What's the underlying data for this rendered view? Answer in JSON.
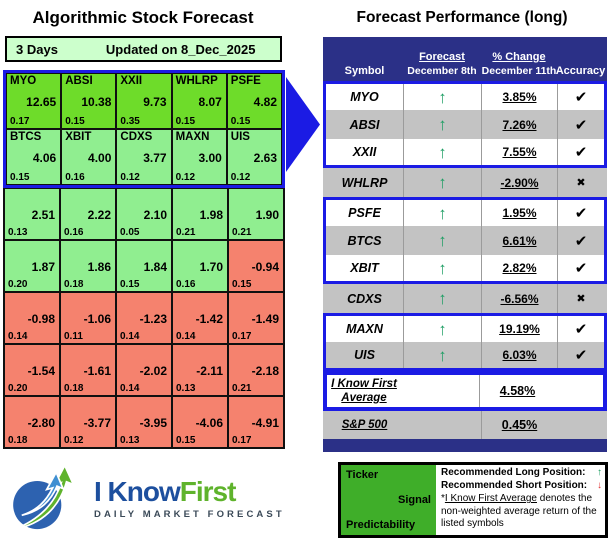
{
  "left_panel": {
    "title": "Algorithmic Stock Forecast",
    "period": "3 Days",
    "updated": "Updated on 8_Dec_2025",
    "grid": {
      "rows": [
        {
          "highlight": true,
          "cells": [
            {
              "ticker": "MYO",
              "signal": "12.65",
              "predictability": "0.17",
              "tone": "strong"
            },
            {
              "ticker": "ABSI",
              "signal": "10.38",
              "predictability": "0.15",
              "tone": "strong"
            },
            {
              "ticker": "XXII",
              "signal": "9.73",
              "predictability": "0.35",
              "tone": "strong"
            },
            {
              "ticker": "WHLRP",
              "signal": "8.07",
              "predictability": "0.15",
              "tone": "strong"
            },
            {
              "ticker": "PSFE",
              "signal": "4.82",
              "predictability": "0.15",
              "tone": "strong"
            }
          ]
        },
        {
          "highlight": true,
          "cells": [
            {
              "ticker": "BTCS",
              "signal": "4.06",
              "predictability": "0.15",
              "tone": "positive"
            },
            {
              "ticker": "XBIT",
              "signal": "4.00",
              "predictability": "0.16",
              "tone": "positive"
            },
            {
              "ticker": "CDXS",
              "signal": "3.77",
              "predictability": "0.12",
              "tone": "positive"
            },
            {
              "ticker": "MAXN",
              "signal": "3.00",
              "predictability": "0.12",
              "tone": "positive"
            },
            {
              "ticker": "UIS",
              "signal": "2.63",
              "predictability": "0.12",
              "tone": "positive"
            }
          ]
        },
        {
          "highlight": false,
          "cells": [
            {
              "ticker": "",
              "signal": "2.51",
              "predictability": "0.13",
              "tone": "positive"
            },
            {
              "ticker": "",
              "signal": "2.22",
              "predictability": "0.16",
              "tone": "positive"
            },
            {
              "ticker": "",
              "signal": "2.10",
              "predictability": "0.05",
              "tone": "positive"
            },
            {
              "ticker": "",
              "signal": "1.98",
              "predictability": "0.21",
              "tone": "positive"
            },
            {
              "ticker": "",
              "signal": "1.90",
              "predictability": "0.21",
              "tone": "positive"
            }
          ]
        },
        {
          "highlight": false,
          "cells": [
            {
              "ticker": "",
              "signal": "1.87",
              "predictability": "0.20",
              "tone": "positive"
            },
            {
              "ticker": "",
              "signal": "1.86",
              "predictability": "0.18",
              "tone": "positive"
            },
            {
              "ticker": "",
              "signal": "1.84",
              "predictability": "0.15",
              "tone": "positive"
            },
            {
              "ticker": "",
              "signal": "1.70",
              "predictability": "0.16",
              "tone": "positive"
            },
            {
              "ticker": "",
              "signal": "-0.94",
              "predictability": "0.15",
              "tone": "negative"
            }
          ]
        },
        {
          "highlight": false,
          "cells": [
            {
              "ticker": "",
              "signal": "-0.98",
              "predictability": "0.14",
              "tone": "negative"
            },
            {
              "ticker": "",
              "signal": "-1.06",
              "predictability": "0.11",
              "tone": "negative"
            },
            {
              "ticker": "",
              "signal": "-1.23",
              "predictability": "0.14",
              "tone": "negative"
            },
            {
              "ticker": "",
              "signal": "-1.42",
              "predictability": "0.14",
              "tone": "negative"
            },
            {
              "ticker": "",
              "signal": "-1.49",
              "predictability": "0.17",
              "tone": "negative"
            }
          ]
        },
        {
          "highlight": false,
          "cells": [
            {
              "ticker": "",
              "signal": "-1.54",
              "predictability": "0.20",
              "tone": "negative"
            },
            {
              "ticker": "",
              "signal": "-1.61",
              "predictability": "0.18",
              "tone": "negative"
            },
            {
              "ticker": "",
              "signal": "-2.02",
              "predictability": "0.14",
              "tone": "negative"
            },
            {
              "ticker": "",
              "signal": "-2.11",
              "predictability": "0.13",
              "tone": "negative"
            },
            {
              "ticker": "",
              "signal": "-2.18",
              "predictability": "0.21",
              "tone": "negative"
            }
          ]
        },
        {
          "highlight": false,
          "cells": [
            {
              "ticker": "",
              "signal": "-2.80",
              "predictability": "0.18",
              "tone": "negative"
            },
            {
              "ticker": "",
              "signal": "-3.77",
              "predictability": "0.12",
              "tone": "negative"
            },
            {
              "ticker": "",
              "signal": "-3.95",
              "predictability": "0.13",
              "tone": "negative"
            },
            {
              "ticker": "",
              "signal": "-4.06",
              "predictability": "0.15",
              "tone": "negative"
            },
            {
              "ticker": "",
              "signal": "-4.91",
              "predictability": "0.17",
              "tone": "negative"
            }
          ]
        }
      ]
    }
  },
  "right_panel": {
    "title": "Forecast Performance (long)",
    "table": {
      "headers": {
        "symbol": "Symbol",
        "forecast_top": "Forecast",
        "forecast_sub": "December 8th",
        "change_top": "% Change",
        "change_sub": "December 11th",
        "accuracy": "Accuracy"
      },
      "rows": [
        {
          "symbol": "MYO",
          "forecast": "up",
          "change": "3.85%",
          "accurate": true,
          "shade": "white",
          "group": "start"
        },
        {
          "symbol": "ABSI",
          "forecast": "up",
          "change": "7.26%",
          "accurate": true,
          "shade": "silver",
          "group": "mid"
        },
        {
          "symbol": "XXII",
          "forecast": "up",
          "change": "7.55%",
          "accurate": true,
          "shade": "white",
          "group": "end"
        },
        {
          "symbol": "WHLRP",
          "forecast": "up",
          "change": "-2.90%",
          "accurate": false,
          "shade": "silver",
          "group": "none"
        },
        {
          "symbol": "PSFE",
          "forecast": "up",
          "change": "1.95%",
          "accurate": true,
          "shade": "white",
          "group": "start"
        },
        {
          "symbol": "BTCS",
          "forecast": "up",
          "change": "6.61%",
          "accurate": true,
          "shade": "silver",
          "group": "mid"
        },
        {
          "symbol": "XBIT",
          "forecast": "up",
          "change": "2.82%",
          "accurate": true,
          "shade": "white",
          "group": "end"
        },
        {
          "symbol": "CDXS",
          "forecast": "up",
          "change": "-6.56%",
          "accurate": false,
          "shade": "silver",
          "group": "none"
        },
        {
          "symbol": "MAXN",
          "forecast": "up",
          "change": "19.19%",
          "accurate": true,
          "shade": "white",
          "group": "start"
        },
        {
          "symbol": "UIS",
          "forecast": "up",
          "change": "6.03%",
          "accurate": true,
          "shade": "silver",
          "group": "end"
        }
      ],
      "summary": {
        "ikf": {
          "label": "I Know First Average",
          "change": "4.58%"
        },
        "sp500": {
          "label": "S&P 500",
          "change": "0.45%"
        }
      }
    }
  },
  "legend": {
    "ticker": "Ticker",
    "signal": "Signal",
    "predictability": "Predictability",
    "long_label": "Recommended Long Position:",
    "short_label": "Recommended Short Position:",
    "note_prefix": "*",
    "note_underline": "I Know First Average",
    "note_suffix": " denotes the non-weighted average return of the listed symbols"
  },
  "logo": {
    "title_part1": "I Know",
    "title_part2": "First",
    "subtitle": "DAILY MARKET FORECAST"
  },
  "icons": {
    "up_arrow": "↑",
    "down_arrow": "↓",
    "check": "✔",
    "cross": "✖"
  },
  "colors": {
    "group_border_blue": "#1b1be4",
    "header_navy": "#2b3087",
    "strong_green": "#6edc2a",
    "pale_green": "#90ee90",
    "negative_salmon": "#f5826e",
    "period_bar_green": "#ccffcc",
    "silver_row": "#c3c3c3",
    "forecast_arrow_green": "#1d9e63",
    "short_arrow_red": "#e03535",
    "legend_green": "#3fae29",
    "logo_blue": "#1d4f9e",
    "logo_green": "#5fb32c"
  },
  "chart_data": [
    {
      "type": "table",
      "title": "Algorithmic Stock Forecast",
      "subtitle": "3 Days — Updated on 8_Dec_2025",
      "columns": [
        "ticker",
        "signal",
        "predictability"
      ],
      "rows": [
        [
          "MYO",
          12.65,
          0.17
        ],
        [
          "ABSI",
          10.38,
          0.15
        ],
        [
          "XXII",
          9.73,
          0.35
        ],
        [
          "WHLRP",
          8.07,
          0.15
        ],
        [
          "PSFE",
          4.82,
          0.15
        ],
        [
          "BTCS",
          4.06,
          0.15
        ],
        [
          "XBIT",
          4.0,
          0.16
        ],
        [
          "CDXS",
          3.77,
          0.12
        ],
        [
          "MAXN",
          3.0,
          0.12
        ],
        [
          "UIS",
          2.63,
          0.12
        ],
        [
          "",
          2.51,
          0.13
        ],
        [
          "",
          2.22,
          0.16
        ],
        [
          "",
          2.1,
          0.05
        ],
        [
          "",
          1.98,
          0.21
        ],
        [
          "",
          1.9,
          0.21
        ],
        [
          "",
          1.87,
          0.2
        ],
        [
          "",
          1.86,
          0.18
        ],
        [
          "",
          1.84,
          0.15
        ],
        [
          "",
          1.7,
          0.16
        ],
        [
          "",
          -0.94,
          0.15
        ],
        [
          "",
          -0.98,
          0.14
        ],
        [
          "",
          -1.06,
          0.11
        ],
        [
          "",
          -1.23,
          0.14
        ],
        [
          "",
          -1.42,
          0.14
        ],
        [
          "",
          -1.49,
          0.17
        ],
        [
          "",
          -1.54,
          0.2
        ],
        [
          "",
          -1.61,
          0.18
        ],
        [
          "",
          -2.02,
          0.14
        ],
        [
          "",
          -2.11,
          0.13
        ],
        [
          "",
          -2.18,
          0.21
        ],
        [
          "",
          -2.8,
          0.18
        ],
        [
          "",
          -3.77,
          0.12
        ],
        [
          "",
          -3.95,
          0.13
        ],
        [
          "",
          -4.06,
          0.15
        ],
        [
          "",
          -4.91,
          0.17
        ]
      ]
    },
    {
      "type": "table",
      "title": "Forecast Performance (long)",
      "columns": [
        "Symbol",
        "Forecast December 8th",
        "% Change December 11th",
        "Accuracy"
      ],
      "rows": [
        [
          "MYO",
          "up",
          "3.85%",
          "hit"
        ],
        [
          "ABSI",
          "up",
          "7.26%",
          "hit"
        ],
        [
          "XXII",
          "up",
          "7.55%",
          "hit"
        ],
        [
          "WHLRP",
          "up",
          "-2.90%",
          "miss"
        ],
        [
          "PSFE",
          "up",
          "1.95%",
          "hit"
        ],
        [
          "BTCS",
          "up",
          "6.61%",
          "hit"
        ],
        [
          "XBIT",
          "up",
          "2.82%",
          "hit"
        ],
        [
          "CDXS",
          "up",
          "-6.56%",
          "miss"
        ],
        [
          "MAXN",
          "up",
          "19.19%",
          "hit"
        ],
        [
          "UIS",
          "up",
          "6.03%",
          "hit"
        ],
        [
          "I Know First Average",
          "",
          "4.58%",
          ""
        ],
        [
          "S&P 500",
          "",
          "0.45%",
          ""
        ]
      ]
    }
  ]
}
